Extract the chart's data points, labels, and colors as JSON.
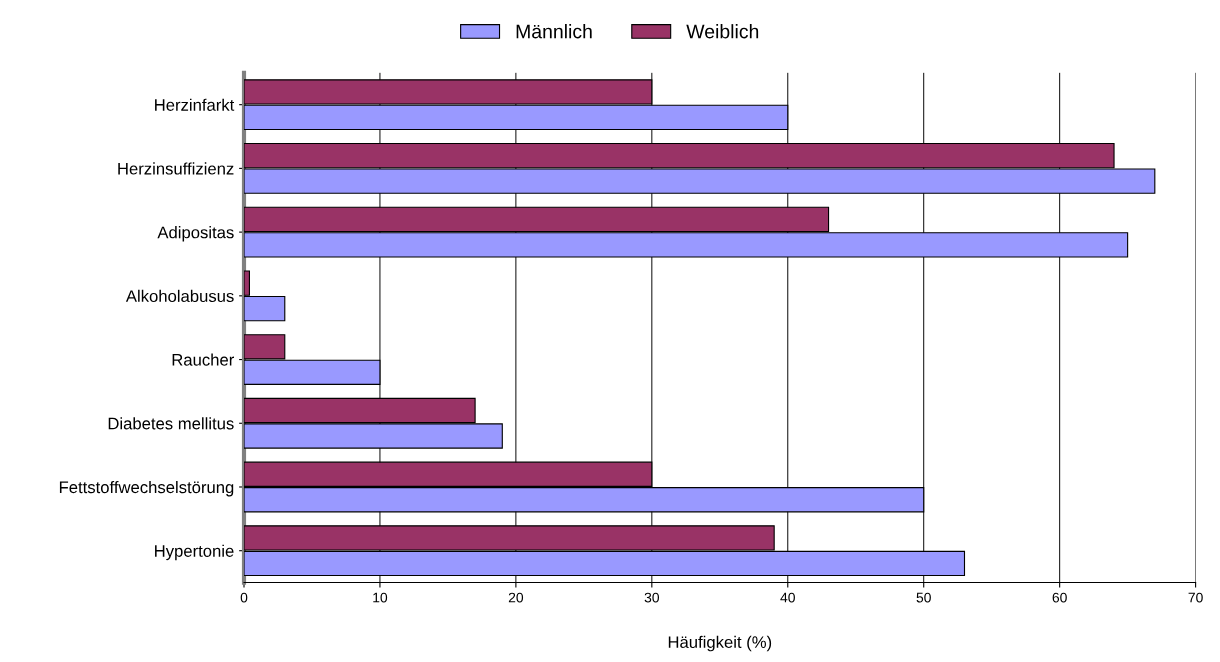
{
  "chart_data": {
    "type": "bar",
    "orientation": "horizontal",
    "xlabel": "Häufigkeit (%)",
    "categories": [
      "Herzinfarkt",
      "Herzinsuffizienz",
      "Adipositas",
      "Alkoholabusus",
      "Raucher",
      "Diabetes mellitus",
      "Fettstoffwechselstörung",
      "Hypertonie"
    ],
    "series": [
      {
        "name": "Männlich",
        "color": "#9999ff",
        "values": [
          40,
          67,
          65,
          3,
          10,
          19,
          50,
          53
        ]
      },
      {
        "name": "Weiblich",
        "color": "#993366",
        "values": [
          30,
          64,
          43,
          0.4,
          3,
          17,
          30,
          39
        ]
      }
    ],
    "xlim": [
      0,
      70
    ],
    "xticks": [
      0,
      10,
      20,
      30,
      40,
      50,
      60,
      70
    ],
    "grid": "x",
    "legend": "top"
  }
}
